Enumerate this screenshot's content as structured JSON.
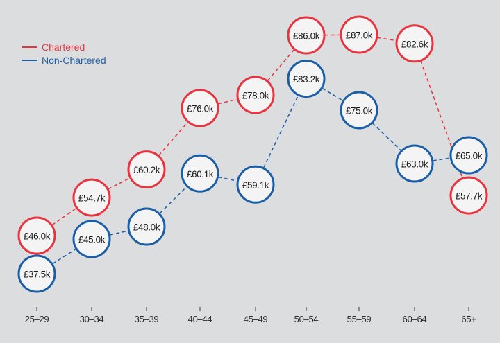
{
  "chart_data": {
    "type": "line",
    "categories": [
      "25–29",
      "30–34",
      "35–39",
      "40–44",
      "45–49",
      "50–54",
      "55–59",
      "60–64",
      "65+"
    ],
    "series": [
      {
        "name": "Chartered",
        "color": "#e8343f",
        "values": [
          46.0,
          54.7,
          60.2,
          76.0,
          78.0,
          86.0,
          87.0,
          82.6,
          57.7
        ],
        "labels": [
          "£46.0k",
          "£54.7k",
          "£60.2k",
          "£76.0k",
          "£78.0k",
          "£86.0k",
          "£87.0k",
          "£82.6k",
          "£57.7k"
        ]
      },
      {
        "name": "Non-Chartered",
        "color": "#1a5ea8",
        "values": [
          37.5,
          45.0,
          48.0,
          60.1,
          59.1,
          83.2,
          75.0,
          63.0,
          65.0
        ],
        "labels": [
          "£37.5k",
          "£45.0k",
          "£48.0k",
          "£60.1k",
          "£59.1k",
          "£83.2k",
          "£75.0k",
          "£63.0k",
          "£65.0k"
        ]
      }
    ],
    "title": "",
    "xlabel": "",
    "ylabel": "",
    "grid": false,
    "legend": "top-left",
    "line_style": "dashed",
    "marker": "circle-with-label"
  }
}
